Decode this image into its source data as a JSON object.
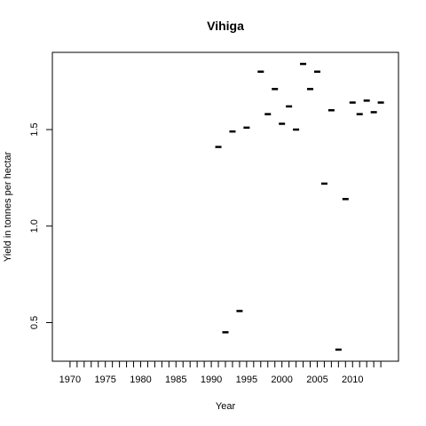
{
  "chart_data": {
    "type": "scatter",
    "marker": "dash",
    "title": "Vihiga",
    "xlabel": "Year",
    "ylabel": "Yield in tonnes per hectar",
    "xlim": [
      1967.5,
      2016.5
    ],
    "ylim": [
      0.3,
      1.9
    ],
    "x_ticks": [
      1970,
      1971,
      1972,
      1973,
      1974,
      1975,
      1976,
      1977,
      1978,
      1979,
      1980,
      1981,
      1982,
      1983,
      1984,
      1985,
      1986,
      1987,
      1988,
      1989,
      1990,
      1991,
      1992,
      1993,
      1994,
      1995,
      1996,
      1997,
      1998,
      1999,
      2000,
      2001,
      2002,
      2003,
      2004,
      2005,
      2006,
      2007,
      2008,
      2009,
      2010,
      2011,
      2012,
      2013,
      2014
    ],
    "x_tick_labels": [
      {
        "value": 1970,
        "label": "1970"
      },
      {
        "value": 1975,
        "label": "1975"
      },
      {
        "value": 1980,
        "label": "1980"
      },
      {
        "value": 1985,
        "label": "1985"
      },
      {
        "value": 1990,
        "label": "1990"
      },
      {
        "value": 1995,
        "label": "1995"
      },
      {
        "value": 2000,
        "label": "2000"
      },
      {
        "value": 2005,
        "label": "2005"
      },
      {
        "value": 2010,
        "label": "2010"
      }
    ],
    "y_tick_labels": [
      {
        "value": 0.5,
        "label": "0.5"
      },
      {
        "value": 1.0,
        "label": "1.0"
      },
      {
        "value": 1.5,
        "label": "1.5"
      }
    ],
    "grid": false,
    "points": [
      {
        "x": 1991,
        "y": 1.41
      },
      {
        "x": 1992,
        "y": 0.45
      },
      {
        "x": 1993,
        "y": 1.49
      },
      {
        "x": 1994,
        "y": 0.56
      },
      {
        "x": 1995,
        "y": 1.51
      },
      {
        "x": 1997,
        "y": 1.8
      },
      {
        "x": 1998,
        "y": 1.58
      },
      {
        "x": 1999,
        "y": 1.71
      },
      {
        "x": 2000,
        "y": 1.53
      },
      {
        "x": 2001,
        "y": 1.62
      },
      {
        "x": 2002,
        "y": 1.5
      },
      {
        "x": 2003,
        "y": 1.84
      },
      {
        "x": 2004,
        "y": 1.71
      },
      {
        "x": 2005,
        "y": 1.8
      },
      {
        "x": 2006,
        "y": 1.22
      },
      {
        "x": 2007,
        "y": 1.6
      },
      {
        "x": 2008,
        "y": 0.36
      },
      {
        "x": 2009,
        "y": 1.14
      },
      {
        "x": 2010,
        "y": 1.64
      },
      {
        "x": 2011,
        "y": 1.58
      },
      {
        "x": 2012,
        "y": 1.65
      },
      {
        "x": 2013,
        "y": 1.59
      },
      {
        "x": 2014,
        "y": 1.64
      }
    ]
  }
}
